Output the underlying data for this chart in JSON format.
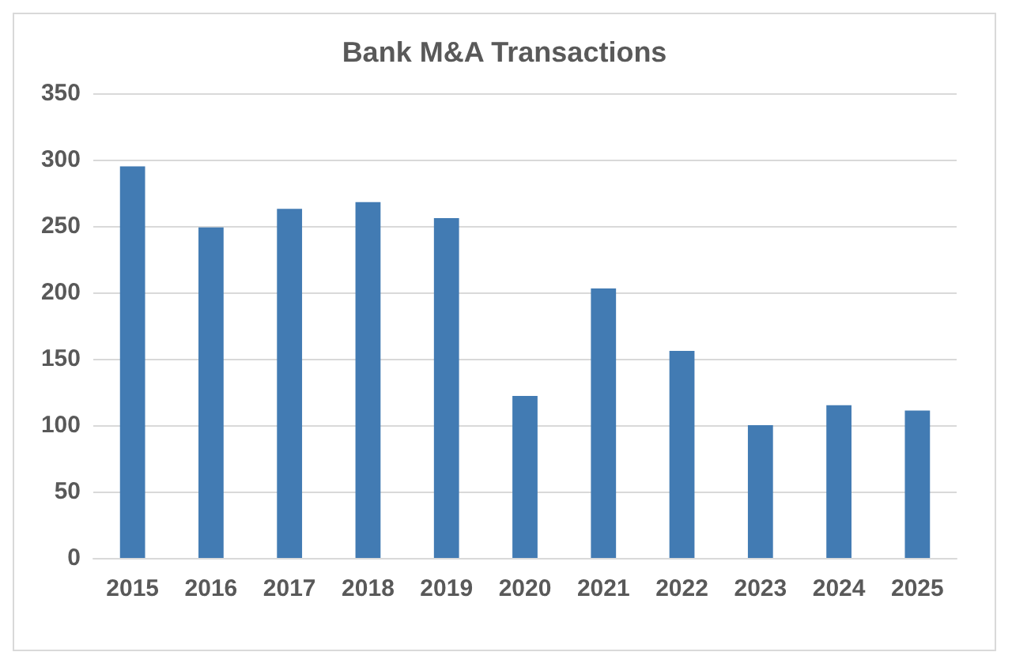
{
  "chart_data": {
    "type": "bar",
    "title": "Bank M&A Transactions",
    "categories": [
      "2015",
      "2016",
      "2017",
      "2018",
      "2019",
      "2020",
      "2021",
      "2022",
      "2023",
      "2024",
      "2025"
    ],
    "values": [
      295,
      249,
      263,
      268,
      256,
      122,
      203,
      156,
      100,
      115,
      111
    ],
    "color": "#427bb3",
    "ylim": [
      0,
      350
    ],
    "yticks": [
      0,
      50,
      100,
      150,
      200,
      250,
      300,
      350
    ],
    "grid": "y"
  }
}
